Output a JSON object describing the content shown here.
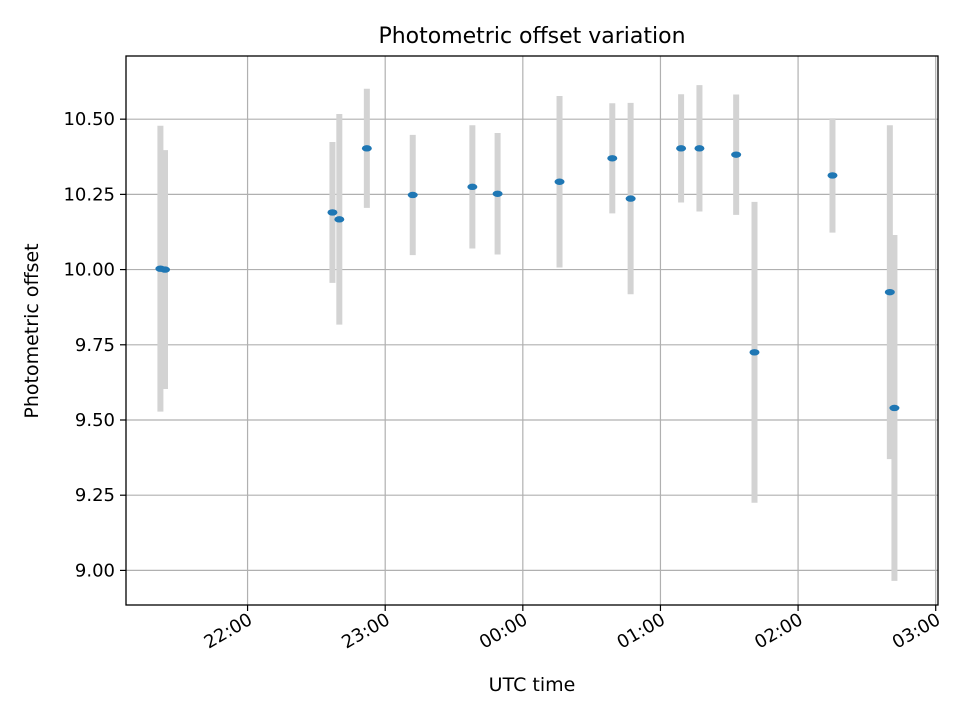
{
  "chart_data": {
    "type": "scatter",
    "title": "Photometric offset variation",
    "xlabel": "UTC time",
    "ylabel": "Photometric offset",
    "x_is_time": true,
    "xlim": [
      "21:07",
      "03:01"
    ],
    "ylim": [
      8.885,
      10.71
    ],
    "x_ticks": [
      "22:00",
      "23:00",
      "00:00",
      "01:00",
      "02:00",
      "03:00"
    ],
    "y_ticks": [
      9.0,
      9.25,
      9.5,
      9.75,
      10.0,
      10.25,
      10.5
    ],
    "y_tick_labels": [
      "9.00",
      "9.25",
      "9.50",
      "9.75",
      "10.00",
      "10.25",
      "10.50"
    ],
    "grid": true,
    "marker_color": "#1f77b4",
    "errorbar_color": "#d3d3d3",
    "points": [
      {
        "time": "21:22",
        "y": 10.003,
        "yerr": 0.475
      },
      {
        "time": "21:24",
        "y": 10.0,
        "yerr": 0.397
      },
      {
        "time": "22:37",
        "y": 10.19,
        "yerr": 0.234
      },
      {
        "time": "22:40",
        "y": 10.167,
        "yerr": 0.35
      },
      {
        "time": "22:52",
        "y": 10.403,
        "yerr": 0.198
      },
      {
        "time": "23:12",
        "y": 10.248,
        "yerr": 0.2
      },
      {
        "time": "23:38",
        "y": 10.275,
        "yerr": 0.205
      },
      {
        "time": "23:49",
        "y": 10.252,
        "yerr": 0.202
      },
      {
        "time": "00:16",
        "y": 10.292,
        "yerr": 0.285
      },
      {
        "time": "00:39",
        "y": 10.37,
        "yerr": 0.183
      },
      {
        "time": "00:47",
        "y": 10.236,
        "yerr": 0.318
      },
      {
        "time": "01:09",
        "y": 10.403,
        "yerr": 0.18
      },
      {
        "time": "01:17",
        "y": 10.403,
        "yerr": 0.21
      },
      {
        "time": "01:33",
        "y": 10.382,
        "yerr": 0.2
      },
      {
        "time": "01:41",
        "y": 9.725,
        "yerr": 0.5
      },
      {
        "time": "02:15",
        "y": 10.313,
        "yerr": 0.19
      },
      {
        "time": "02:40",
        "y": 9.925,
        "yerr": 0.555
      },
      {
        "time": "02:42",
        "y": 9.54,
        "yerr": 0.575
      }
    ]
  }
}
